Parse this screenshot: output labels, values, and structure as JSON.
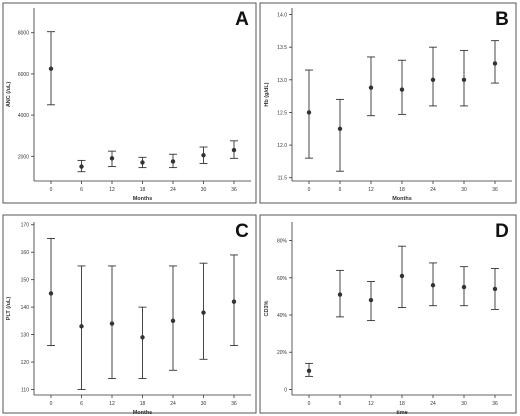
{
  "figure": {
    "background": "#ffffff",
    "mark_color": "#333333",
    "frame_color": "#555555"
  },
  "chart_data": [
    {
      "panel_id": "A",
      "type": "scatter",
      "title": "",
      "xlabel": "Months",
      "ylabel": "ANC (/uL)",
      "x": [
        0,
        6,
        12,
        18,
        24,
        30,
        36
      ],
      "xticks": [
        "0",
        "6",
        "12",
        "18",
        "24",
        "30",
        "36"
      ],
      "yticks": [
        2000,
        4000,
        6000,
        8000
      ],
      "ylim": [
        800,
        9200
      ],
      "series": [
        {
          "values": [
            6250,
            1500,
            1900,
            1700,
            1750,
            2050,
            2300
          ],
          "err_low": [
            4500,
            1250,
            1500,
            1450,
            1450,
            1650,
            1900
          ],
          "err_high": [
            8050,
            1800,
            2250,
            1950,
            2100,
            2450,
            2750
          ]
        }
      ],
      "grid": false
    },
    {
      "panel_id": "B",
      "type": "scatter",
      "title": "",
      "xlabel": "Months",
      "ylabel": "Hb (g/dL)",
      "x": [
        0,
        6,
        12,
        18,
        24,
        30,
        36
      ],
      "xticks": [
        "0",
        "6",
        "12",
        "18",
        "24",
        "30",
        "36"
      ],
      "yticks": [
        11.5,
        12.0,
        12.5,
        13.0,
        13.5,
        14.0
      ],
      "ylim": [
        11.45,
        14.1
      ],
      "series": [
        {
          "values": [
            12.5,
            12.25,
            12.88,
            12.85,
            13.0,
            13.0,
            13.25
          ],
          "err_low": [
            11.8,
            11.6,
            12.45,
            12.47,
            12.6,
            12.6,
            12.95
          ],
          "err_high": [
            13.15,
            12.7,
            13.35,
            13.3,
            13.5,
            13.45,
            13.6
          ]
        }
      ],
      "grid": false
    },
    {
      "panel_id": "C",
      "type": "scatter",
      "title": "",
      "xlabel": "Months",
      "ylabel": "PLT (/uL)",
      "x": [
        0,
        6,
        12,
        18,
        24,
        30,
        36
      ],
      "xticks": [
        "0",
        "6",
        "12",
        "18",
        "24",
        "30",
        "36"
      ],
      "yticks": [
        110,
        120,
        130,
        140,
        150,
        160,
        170
      ],
      "ylim": [
        108,
        171
      ],
      "series": [
        {
          "values": [
            145,
            133,
            134,
            129,
            135,
            138,
            142
          ],
          "err_low": [
            126,
            110,
            114,
            114,
            117,
            121,
            126
          ],
          "err_high": [
            165,
            155,
            155,
            140,
            155,
            156,
            159
          ]
        }
      ],
      "grid": false
    },
    {
      "panel_id": "D",
      "type": "scatter",
      "title": "",
      "xlabel": "time",
      "ylabel": "CD3%",
      "x": [
        0,
        6,
        12,
        18,
        24,
        30,
        36
      ],
      "xticks": [
        "0",
        "6",
        "12",
        "18",
        "24",
        "30",
        "36"
      ],
      "yticks": [
        "0",
        "20%",
        "40%",
        "60%",
        "80%"
      ],
      "ytick_values": [
        0,
        20,
        40,
        60,
        80
      ],
      "ylim": [
        -3,
        90
      ],
      "series": [
        {
          "values": [
            10,
            51,
            48,
            61,
            56,
            55,
            54
          ],
          "err_low": [
            7,
            39,
            37,
            44,
            45,
            45,
            43
          ],
          "err_high": [
            14,
            64,
            58,
            77,
            68,
            66,
            65
          ]
        }
      ],
      "grid": false
    }
  ]
}
